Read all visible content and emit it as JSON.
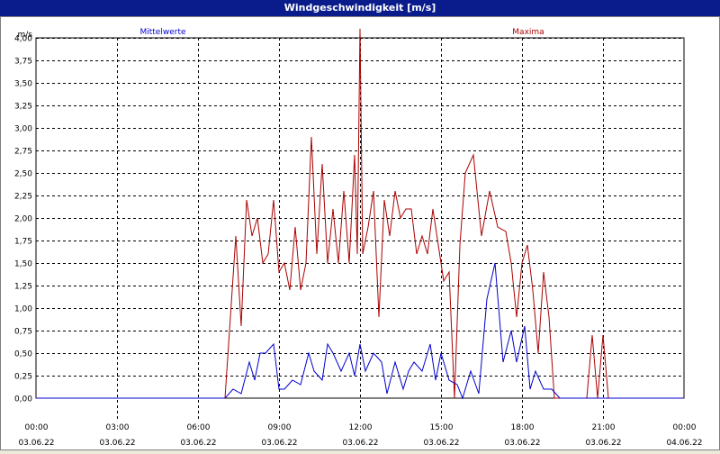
{
  "window": {
    "title": "Windgeschwindigkeit [m/s]"
  },
  "chart_data": {
    "type": "line",
    "title": "Windgeschwindigkeit [m/s]",
    "ylabel": "m/s",
    "ylim": [
      0,
      4.0
    ],
    "grid": true,
    "yticks": [
      "0,00",
      "0,25",
      "0,50",
      "0,75",
      "1,00",
      "1,25",
      "1,50",
      "1,75",
      "2,00",
      "2,25",
      "2,50",
      "2,75",
      "3,00",
      "3,25",
      "3,50",
      "3,75",
      "4,00"
    ],
    "xticks": [
      {
        "time": "00:00",
        "date": "03.06.22"
      },
      {
        "time": "03:00",
        "date": "03.06.22"
      },
      {
        "time": "06:00",
        "date": "03.06.22"
      },
      {
        "time": "09:00",
        "date": "03.06.22"
      },
      {
        "time": "12:00",
        "date": "03.06.22"
      },
      {
        "time": "15:00",
        "date": "03.06.22"
      },
      {
        "time": "18:00",
        "date": "03.06.22"
      },
      {
        "time": "21:00",
        "date": "03.06.22"
      },
      {
        "time": "00:00",
        "date": "04.06.22"
      }
    ],
    "x_unit": "hours",
    "series": [
      {
        "name": "Mittelwerte",
        "color": "#0000cc",
        "x": [
          0,
          7.0,
          7.3,
          7.6,
          7.9,
          8.1,
          8.3,
          8.5,
          8.8,
          9.0,
          9.2,
          9.5,
          9.8,
          10.1,
          10.3,
          10.6,
          10.8,
          11.0,
          11.3,
          11.6,
          11.8,
          12.0,
          12.2,
          12.5,
          12.8,
          13.0,
          13.3,
          13.6,
          13.8,
          14.0,
          14.3,
          14.6,
          14.8,
          15.0,
          15.3,
          15.6,
          15.8,
          16.1,
          16.4,
          16.7,
          17.0,
          17.3,
          17.6,
          17.8,
          18.1,
          18.3,
          18.5,
          18.8,
          19.1,
          19.4,
          19.6,
          24
        ],
        "values": [
          0,
          0,
          0.1,
          0.05,
          0.4,
          0.2,
          0.5,
          0.5,
          0.6,
          0.1,
          0.1,
          0.2,
          0.15,
          0.5,
          0.3,
          0.2,
          0.6,
          0.5,
          0.3,
          0.5,
          0.25,
          0.6,
          0.3,
          0.5,
          0.4,
          0.05,
          0.4,
          0.1,
          0.3,
          0.4,
          0.3,
          0.6,
          0.2,
          0.5,
          0.2,
          0.15,
          0.0,
          0.3,
          0.05,
          1.1,
          1.5,
          0.4,
          0.75,
          0.4,
          0.8,
          0.1,
          0.3,
          0.1,
          0.1,
          0.0,
          0.0,
          0
        ]
      },
      {
        "name": "Maxima",
        "color": "#aa0000",
        "x": [
          0,
          7.0,
          7.2,
          7.4,
          7.6,
          7.8,
          8.0,
          8.2,
          8.4,
          8.6,
          8.8,
          9.0,
          9.2,
          9.4,
          9.6,
          9.8,
          10.0,
          10.2,
          10.4,
          10.6,
          10.8,
          11.0,
          11.2,
          11.4,
          11.6,
          11.8,
          11.9,
          12.0,
          12.1,
          12.3,
          12.5,
          12.7,
          12.9,
          13.1,
          13.3,
          13.5,
          13.7,
          13.9,
          14.1,
          14.3,
          14.5,
          14.7,
          14.9,
          15.1,
          15.3,
          15.5,
          15.7,
          15.9,
          16.2,
          16.5,
          16.8,
          17.1,
          17.4,
          17.6,
          17.8,
          18.0,
          18.2,
          18.4,
          18.6,
          18.8,
          19.0,
          19.2,
          19.4,
          19.6,
          20.0,
          20.4,
          20.6,
          20.8,
          21.0,
          21.2,
          21.4,
          21.6,
          24
        ],
        "values": [
          0,
          0,
          0.9,
          1.8,
          0.8,
          2.2,
          1.8,
          2.0,
          1.5,
          1.6,
          2.2,
          1.4,
          1.5,
          1.2,
          1.9,
          1.2,
          1.5,
          2.9,
          1.6,
          2.6,
          1.5,
          2.1,
          1.5,
          2.3,
          1.5,
          2.7,
          1.6,
          4.1,
          1.6,
          1.9,
          2.3,
          0.9,
          2.2,
          1.8,
          2.3,
          2.0,
          2.1,
          2.1,
          1.6,
          1.8,
          1.6,
          2.1,
          1.7,
          1.3,
          1.4,
          0.0,
          1.7,
          2.5,
          2.7,
          1.8,
          2.3,
          1.9,
          1.85,
          1.5,
          0.9,
          1.5,
          1.7,
          1.2,
          0.5,
          1.4,
          0.9,
          0.0,
          0.0,
          0.0,
          0.0,
          0.0,
          0.7,
          0.0,
          0.7,
          0.0,
          0.0,
          0.0,
          0
        ]
      }
    ]
  }
}
